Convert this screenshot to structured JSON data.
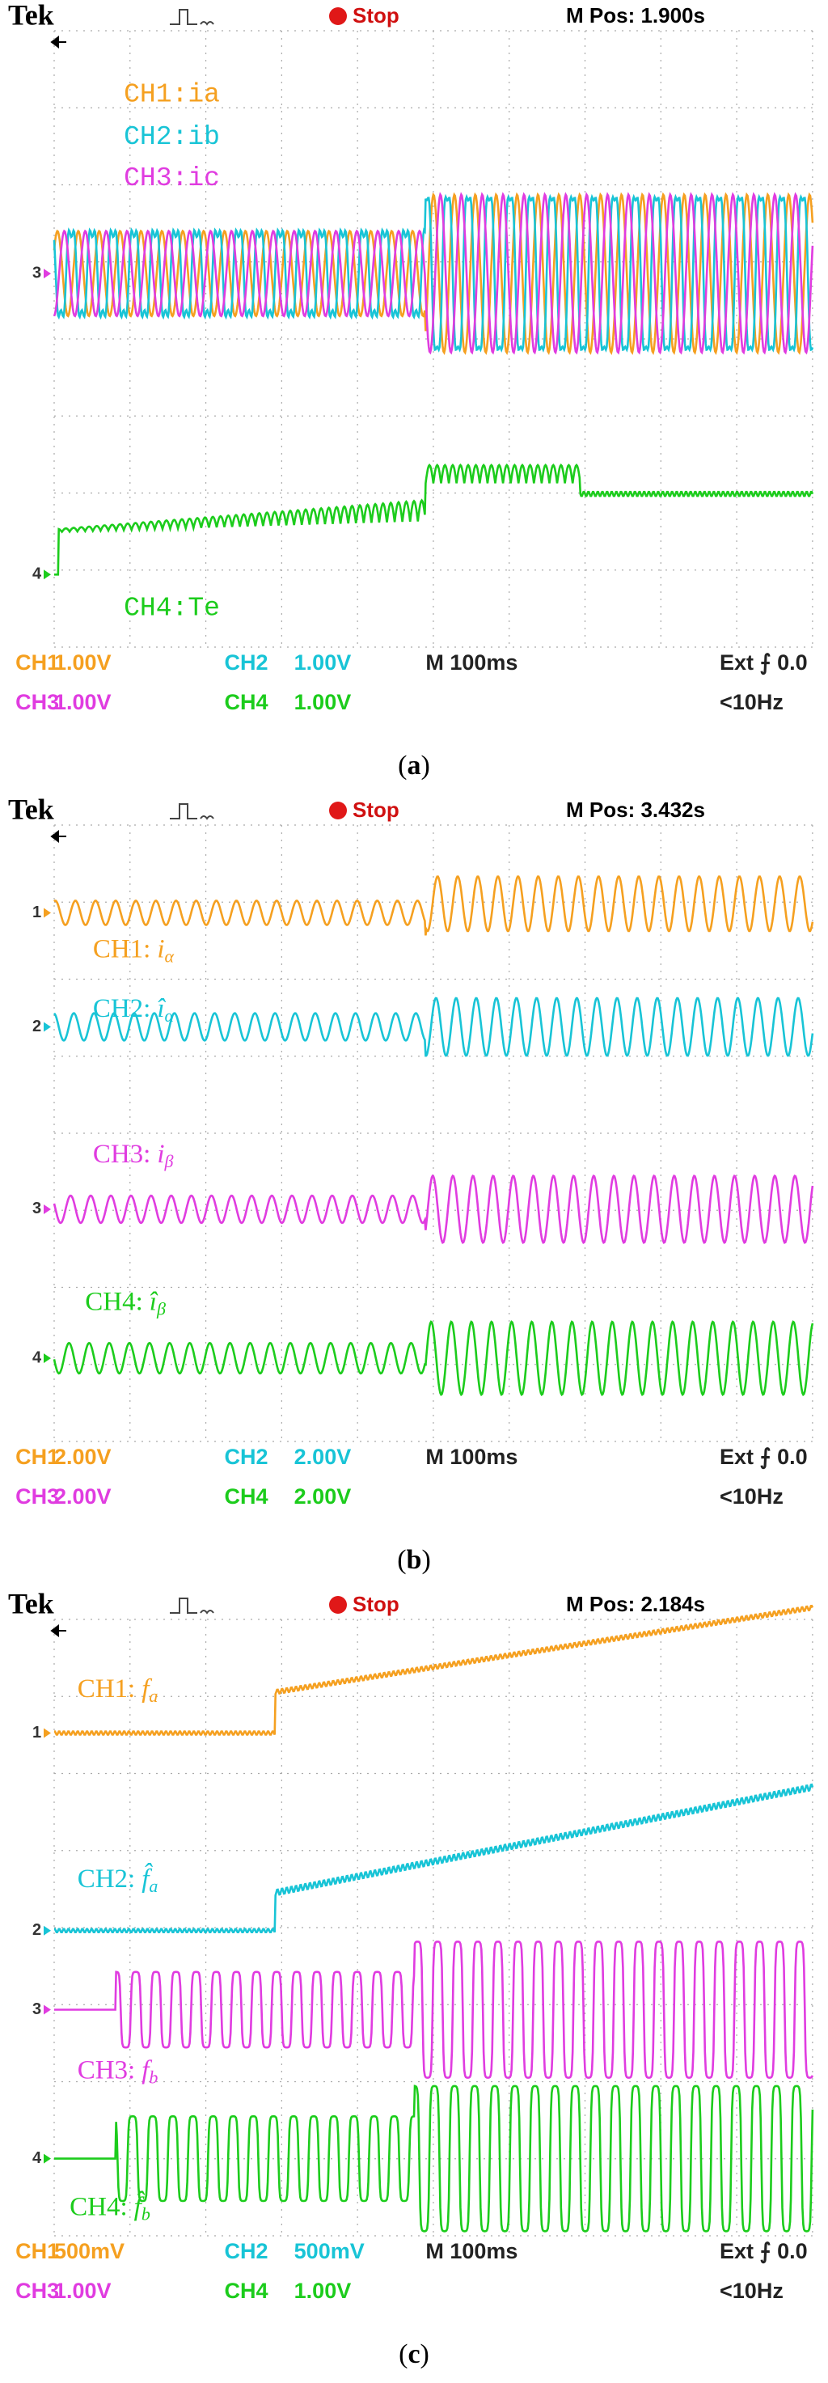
{
  "panels": [
    {
      "header": {
        "brand": "Tek",
        "status": "Stop",
        "position": "M Pos: 1.900s"
      },
      "labels": [
        {
          "text": "CH1:ia"
        },
        {
          "text": "CH2:ib"
        },
        {
          "text": "CH3:ic"
        },
        {
          "text": "CH4:Te"
        }
      ],
      "markers": [
        "3",
        "4"
      ],
      "status": {
        "row1": [
          "CH1",
          "1.00V",
          "CH2",
          "1.00V",
          "M 100ms",
          "Ext ⨍ 0.0"
        ],
        "row2": [
          "CH3",
          "1.00V",
          "CH4",
          "1.00V",
          "<10Hz"
        ]
      },
      "caption": {
        "open": "(",
        "letter": "a",
        "close": ")"
      }
    },
    {
      "header": {
        "brand": "Tek",
        "status": "Stop",
        "position": "M Pos: 3.432s"
      },
      "labels": [
        {
          "text": "CH1:",
          "symbol": "i",
          "sub": "α"
        },
        {
          "text": "CH2:",
          "symbol": "î",
          "sub": "α"
        },
        {
          "text": "CH3:",
          "symbol": "i",
          "sub": "β"
        },
        {
          "text": "CH4:",
          "symbol": "î",
          "sub": "β"
        }
      ],
      "markers": [
        "1",
        "2",
        "3",
        "4"
      ],
      "status": {
        "row1": [
          "CH1",
          "2.00V",
          "CH2",
          "2.00V",
          "M 100ms",
          "Ext ⨍ 0.0"
        ],
        "row2": [
          "CH3",
          "2.00V",
          "CH4",
          "2.00V",
          "<10Hz"
        ]
      },
      "caption": {
        "open": "(",
        "letter": "b",
        "close": ")"
      }
    },
    {
      "header": {
        "brand": "Tek",
        "status": "Stop",
        "position": "M Pos: 2.184s"
      },
      "labels": [
        {
          "text": "CH1:",
          "symbol": "f",
          "sub": "a"
        },
        {
          "text": "CH2:",
          "symbol": "f̂",
          "sub": "a"
        },
        {
          "text": "CH3:",
          "symbol": "f",
          "sub": "b"
        },
        {
          "text": "CH4:",
          "symbol": "f̂",
          "sub": "b"
        }
      ],
      "markers": [
        "1",
        "2",
        "3",
        "4"
      ],
      "status": {
        "row1": [
          "CH1",
          "500mV",
          "CH2",
          "500mV",
          "M 100ms",
          "Ext ⨍ 0.0"
        ],
        "row2": [
          "CH3",
          "1.00V",
          "CH4",
          "1.00V",
          "<10Hz"
        ]
      },
      "caption": {
        "open": "(",
        "letter": "c",
        "close": ")"
      }
    }
  ]
}
